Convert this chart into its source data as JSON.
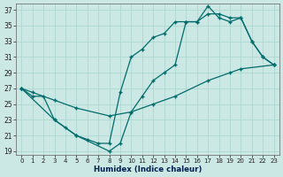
{
  "xlabel": "Humidex (Indice chaleur)",
  "bg_color": "#cce8e4",
  "grid_color": "#a8d4ce",
  "line_color": "#006b6b",
  "xlim_min": -0.5,
  "xlim_max": 23.5,
  "ylim_min": 18.5,
  "ylim_max": 37.8,
  "xticks": [
    0,
    1,
    2,
    3,
    4,
    5,
    6,
    7,
    8,
    9,
    10,
    11,
    12,
    13,
    14,
    15,
    16,
    17,
    18,
    19,
    20,
    21,
    22,
    23
  ],
  "yticks": [
    19,
    21,
    23,
    25,
    27,
    29,
    31,
    33,
    35,
    37
  ],
  "line1_x": [
    0,
    1,
    3,
    5,
    8,
    10,
    12,
    14,
    17,
    19,
    20,
    23
  ],
  "line1_y": [
    27,
    26.5,
    25.5,
    24.5,
    23.5,
    24,
    25,
    26,
    28,
    29,
    29.5,
    30
  ],
  "line2_x": [
    0,
    1,
    2,
    3,
    4,
    5,
    6,
    7,
    8,
    9,
    10,
    11,
    12,
    13,
    14,
    15,
    16,
    17,
    18,
    19,
    20,
    21,
    22,
    23
  ],
  "line2_y": [
    27,
    26,
    26,
    23,
    22,
    21,
    20.5,
    20,
    20,
    26.5,
    31,
    32,
    33.5,
    34,
    35.5,
    35.5,
    35.5,
    37.5,
    36,
    35.5,
    36,
    33,
    31,
    30
  ],
  "line3_x": [
    0,
    3,
    5,
    8,
    9,
    10,
    11,
    12,
    13,
    14,
    15,
    16,
    17,
    18,
    19,
    20,
    21,
    22,
    23
  ],
  "line3_y": [
    27,
    23,
    21,
    19,
    20,
    24,
    26,
    28,
    29,
    30,
    35.5,
    35.5,
    36.5,
    36.5,
    36,
    36,
    33,
    31,
    30
  ]
}
